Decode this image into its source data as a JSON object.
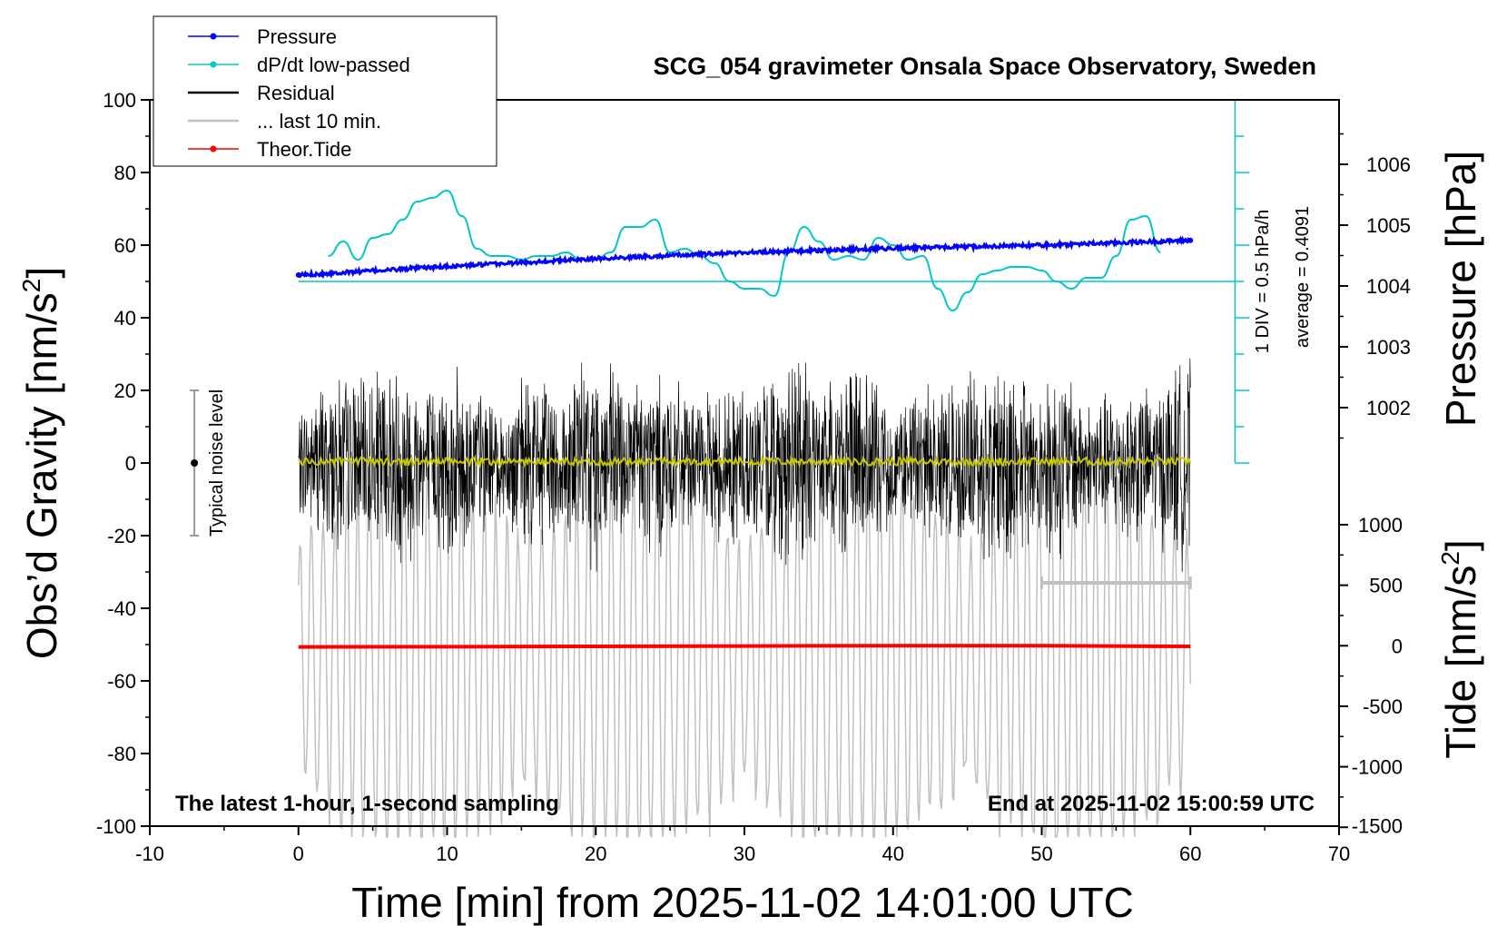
{
  "chart_data": {
    "type": "line",
    "title": "SCG_054 gravimeter Onsala Space Observatory, Sweden",
    "xlabel": "Time [min] from 2025-11-02 14:01:00 UTC",
    "ylabel_left": "Obs’d Gravity [nm/s",
    "ylabel_pressure": "Pressure [hPa]",
    "ylabel_tide": "Tide [nm/s",
    "ylabel_sup": "2",
    "ylabel_close": "]",
    "xlim": [
      -10,
      70
    ],
    "ylim": [
      -100,
      100
    ],
    "pressure_lim": [
      1000.95,
      1007.0
    ],
    "tide_lim": [
      -1500,
      1500
    ],
    "x_ticks": [
      -10,
      0,
      10,
      20,
      30,
      40,
      50,
      60,
      70
    ],
    "y_ticks": [
      100,
      80,
      60,
      40,
      20,
      0,
      -20,
      -40,
      -60,
      -80,
      -100
    ],
    "pressure_ticks": [
      1006,
      1005,
      1004,
      1003,
      1002
    ],
    "tide_ticks": [
      1000,
      500,
      0,
      -500,
      -1000,
      -1500
    ],
    "legend": {
      "position": "top-left",
      "entries": [
        {
          "label": "Pressure",
          "color": "#0000ff",
          "marker": true
        },
        {
          "label": "dP/dt low-passed",
          "color": "#00c8c8",
          "marker": true
        },
        {
          "label": "Residual",
          "color": "#000000",
          "marker": false
        },
        {
          "label": "... last 10 min.",
          "color": "#c0c0c0",
          "marker": false
        },
        {
          "label": "Theor.Tide",
          "color": "#ff0000",
          "marker": true
        }
      ]
    },
    "annotations": {
      "noise_label": "Typical noise level",
      "noise_range": [
        -20,
        20
      ],
      "noise_x": -7,
      "div_label": "1 DIV = 0.5 hPa/h",
      "average_label": "average = 0.4091",
      "dpdt_zero_y": 50,
      "dpdt_scale_x": 63,
      "dpdt_scale_range": [
        0,
        100
      ],
      "bottom_left": "The latest 1-hour, 1-second sampling",
      "bottom_right": "End at 2025-11-02 15:00:59 UTC",
      "last10_bar": {
        "x": [
          50,
          60
        ],
        "y": -33
      }
    },
    "colors": {
      "pressure": "#0000ff",
      "dpdt": "#00c8c8",
      "residual": "#000000",
      "residual_smooth": "#c8c800",
      "last10": "#c0c0c0",
      "tide": "#ff0000"
    },
    "series": [
      {
        "name": "Pressure",
        "axis": "pressure",
        "x": [
          0,
          10,
          20,
          30,
          40,
          50,
          60
        ],
        "values": [
          1004.18,
          1004.32,
          1004.45,
          1004.55,
          1004.62,
          1004.67,
          1004.75
        ]
      },
      {
        "name": "dP/dt low-passed",
        "axis": "left",
        "x": [
          2,
          3,
          4,
          5,
          6,
          7,
          8,
          9,
          10,
          11,
          12,
          13,
          14,
          15,
          16,
          17,
          18,
          19,
          20,
          21,
          22,
          23,
          24,
          25,
          26,
          27,
          28,
          29,
          30,
          31,
          32,
          33,
          34,
          35,
          36,
          37,
          38,
          39,
          40,
          41,
          42,
          43,
          44,
          45,
          46,
          47,
          48,
          49,
          50,
          51,
          52,
          53,
          54,
          55,
          56,
          57,
          58
        ],
        "values": [
          57,
          61,
          56,
          62,
          63,
          67,
          72,
          73,
          75,
          68,
          59,
          57,
          57,
          56,
          57,
          57,
          58,
          56,
          56,
          58,
          65,
          65,
          67,
          58,
          59,
          57,
          55,
          50,
          48,
          48,
          46,
          58,
          65,
          61,
          56,
          57,
          56,
          62,
          60,
          56,
          57,
          48,
          42,
          47,
          52,
          53,
          54,
          54,
          53,
          50,
          48,
          51,
          51,
          57,
          67,
          68,
          58
        ]
      },
      {
        "name": "Residual",
        "axis": "left",
        "x": [
          0,
          60
        ]
      },
      {
        "name": "... last 10 min.",
        "axis": "left",
        "x": [
          0,
          60
        ]
      },
      {
        "name": "Theor.Tide",
        "axis": "tide",
        "x": [
          0,
          10,
          20,
          30,
          40,
          50,
          60
        ],
        "values": [
          -10,
          -8,
          -5,
          -2,
          1,
          0,
          -5
        ]
      }
    ]
  }
}
